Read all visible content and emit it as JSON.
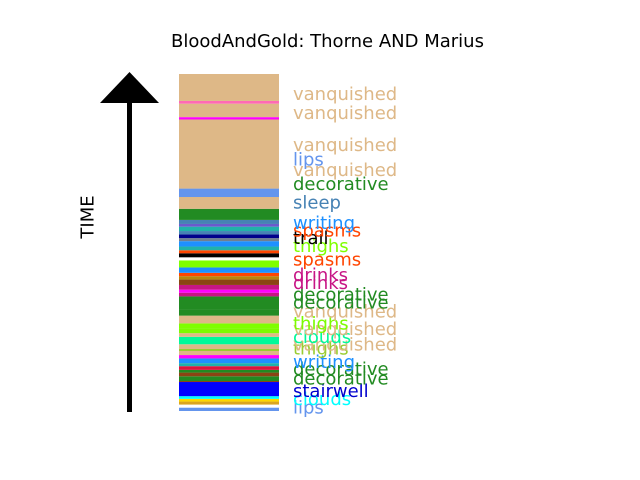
{
  "chart_data": {
    "type": "bar",
    "title": "BloodAndGold: Thorne AND Marius",
    "ylabel": "TIME",
    "ylim": [
      0,
      100
    ],
    "segments": [
      {
        "start": 0.0,
        "end": 1.0,
        "color": "#6495ed"
      },
      {
        "start": 1.0,
        "end": 1.9,
        "color": "#ffffff"
      },
      {
        "start": 1.9,
        "end": 2.8,
        "color": "#daa520"
      },
      {
        "start": 2.8,
        "end": 3.6,
        "color": "#ffd700"
      },
      {
        "start": 3.6,
        "end": 4.4,
        "color": "#00ffff"
      },
      {
        "start": 4.4,
        "end": 8.6,
        "color": "#0000ff"
      },
      {
        "start": 8.6,
        "end": 8.9,
        "color": "#8b4513"
      },
      {
        "start": 8.9,
        "end": 10.3,
        "color": "#228b22"
      },
      {
        "start": 10.3,
        "end": 11.4,
        "color": "#8b4513"
      },
      {
        "start": 11.4,
        "end": 12.2,
        "color": "#228b22"
      },
      {
        "start": 12.2,
        "end": 13.3,
        "color": "#dc143c"
      },
      {
        "start": 13.3,
        "end": 14.2,
        "color": "#20b2aa"
      },
      {
        "start": 14.2,
        "end": 15.6,
        "color": "#1e90ff"
      },
      {
        "start": 15.6,
        "end": 16.6,
        "color": "#ff00ff"
      },
      {
        "start": 16.6,
        "end": 17.8,
        "color": "#deb887"
      },
      {
        "start": 17.8,
        "end": 18.4,
        "color": "#9acd32"
      },
      {
        "start": 18.4,
        "end": 19.8,
        "color": "#deb887"
      },
      {
        "start": 19.8,
        "end": 22.0,
        "color": "#00fa9a"
      },
      {
        "start": 22.0,
        "end": 23.1,
        "color": "#deb887"
      },
      {
        "start": 23.1,
        "end": 24.6,
        "color": "#7cfc00"
      },
      {
        "start": 24.6,
        "end": 26.0,
        "color": "#7fff00"
      },
      {
        "start": 26.0,
        "end": 28.3,
        "color": "#deb887"
      },
      {
        "start": 28.3,
        "end": 30.1,
        "color": "#228b22"
      },
      {
        "start": 30.1,
        "end": 34.0,
        "color": "#228b22"
      },
      {
        "start": 34.0,
        "end": 35.1,
        "color": "#c71585"
      },
      {
        "start": 35.1,
        "end": 36.0,
        "color": "#ff00ff"
      },
      {
        "start": 36.0,
        "end": 37.4,
        "color": "#c71585"
      },
      {
        "start": 37.4,
        "end": 39.0,
        "color": "#8b4513"
      },
      {
        "start": 39.0,
        "end": 40.0,
        "color": "#b8860b"
      },
      {
        "start": 40.0,
        "end": 41.0,
        "color": "#ff4500"
      },
      {
        "start": 41.0,
        "end": 42.6,
        "color": "#1e90ff"
      },
      {
        "start": 42.6,
        "end": 44.7,
        "color": "#7fff00"
      },
      {
        "start": 44.7,
        "end": 45.6,
        "color": "#ffffff"
      },
      {
        "start": 45.6,
        "end": 46.8,
        "color": "#000000"
      },
      {
        "start": 46.8,
        "end": 47.7,
        "color": "#ff4500"
      },
      {
        "start": 47.7,
        "end": 48.8,
        "color": "#20b2aa"
      },
      {
        "start": 48.8,
        "end": 50.4,
        "color": "#1e90ff"
      },
      {
        "start": 50.4,
        "end": 51.3,
        "color": "#708090"
      },
      {
        "start": 51.3,
        "end": 52.4,
        "color": "#00008b"
      },
      {
        "start": 52.4,
        "end": 53.4,
        "color": "#4682b4"
      },
      {
        "start": 53.4,
        "end": 54.7,
        "color": "#20b2aa"
      },
      {
        "start": 54.7,
        "end": 55.5,
        "color": "#6a5acd"
      },
      {
        "start": 55.5,
        "end": 56.7,
        "color": "#4682b4"
      },
      {
        "start": 56.7,
        "end": 60.0,
        "color": "#228b22"
      },
      {
        "start": 60.0,
        "end": 63.5,
        "color": "#deb887"
      },
      {
        "start": 63.5,
        "end": 66.0,
        "color": "#6495ed"
      },
      {
        "start": 66.0,
        "end": 86.5,
        "color": "#deb887"
      },
      {
        "start": 86.5,
        "end": 87.2,
        "color": "#ff00ff"
      },
      {
        "start": 87.2,
        "end": 91.2,
        "color": "#deb887"
      },
      {
        "start": 91.2,
        "end": 92.0,
        "color": "#ff69b4"
      },
      {
        "start": 92.0,
        "end": 100.0,
        "color": "#deb887"
      }
    ],
    "labels": [
      {
        "text": "lips",
        "at": 1.0,
        "color": "#6495ed"
      },
      {
        "text": "clouds",
        "at": 3.6,
        "color": "#00ffff"
      },
      {
        "text": "stairwell",
        "at": 6.0,
        "color": "#0000cd"
      },
      {
        "text": "decorative",
        "at": 9.6,
        "color": "#228b22"
      },
      {
        "text": "decorative",
        "at": 12.4,
        "color": "#228b22"
      },
      {
        "text": "writing",
        "at": 14.6,
        "color": "#1e90ff"
      },
      {
        "text": "thighs",
        "at": 18.6,
        "color": "#9acd32"
      },
      {
        "text": "vanquished",
        "at": 19.8,
        "color": "#deb887"
      },
      {
        "text": "clouds",
        "at": 22.0,
        "color": "#00fa9a"
      },
      {
        "text": "vanquished",
        "at": 24.4,
        "color": "#deb887"
      },
      {
        "text": "thighs",
        "at": 26.0,
        "color": "#7cfc00"
      },
      {
        "text": "vanquished",
        "at": 29.6,
        "color": "#deb887"
      },
      {
        "text": "decorative",
        "at": 32.2,
        "color": "#228b22"
      },
      {
        "text": "decorative",
        "at": 34.6,
        "color": "#228b22"
      },
      {
        "text": "drinks",
        "at": 38.0,
        "color": "#c71585"
      },
      {
        "text": "drinks",
        "at": 40.3,
        "color": "#c71585"
      },
      {
        "text": "spasms",
        "at": 45.0,
        "color": "#ff4500"
      },
      {
        "text": "thighs",
        "at": 49.0,
        "color": "#7fff00"
      },
      {
        "text": "trail",
        "at": 51.4,
        "color": "#000000"
      },
      {
        "text": "spasms",
        "at": 53.6,
        "color": "#ff4500"
      },
      {
        "text": "writing",
        "at": 55.8,
        "color": "#1e90ff"
      },
      {
        "text": "sleep",
        "at": 61.8,
        "color": "#4682b4"
      },
      {
        "text": "decorative",
        "at": 67.4,
        "color": "#228b22"
      },
      {
        "text": "vanquished",
        "at": 71.5,
        "color": "#deb887"
      },
      {
        "text": "lips",
        "at": 74.6,
        "color": "#6495ed"
      },
      {
        "text": "vanquished",
        "at": 79.0,
        "color": "#deb887"
      },
      {
        "text": "vanquished",
        "at": 88.4,
        "color": "#deb887"
      },
      {
        "text": "vanquished",
        "at": 94.0,
        "color": "#deb887"
      }
    ]
  }
}
